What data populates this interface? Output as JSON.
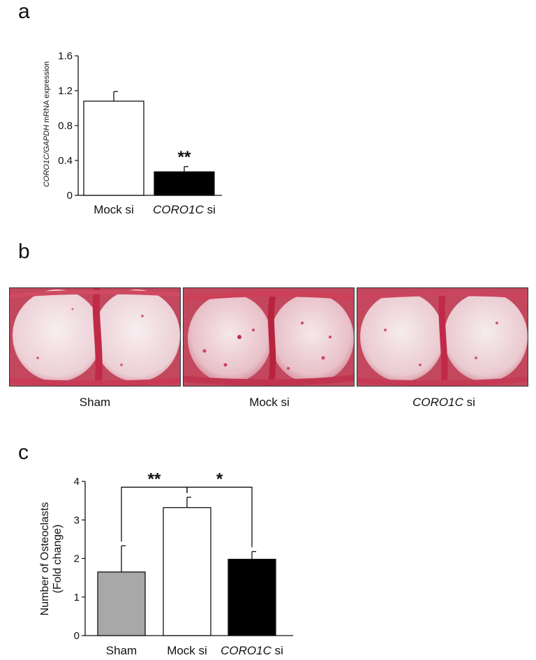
{
  "panels": {
    "a": "a",
    "b": "b",
    "c": "c"
  },
  "chart_data": [
    {
      "panel": "a",
      "type": "bar",
      "categories": [
        "Mock si",
        "CORO1C si"
      ],
      "category_parts": [
        {
          "italic": "",
          "plain": "Mock si"
        },
        {
          "italic": "CORO1C",
          "plain": " si"
        }
      ],
      "values": [
        1.08,
        0.27
      ],
      "errors": [
        0.11,
        0.06
      ],
      "bar_colors": [
        "#ffffff",
        "#000000"
      ],
      "ylabel_parts": {
        "italic": "CORO1C/GAPDH",
        "plain": " mRNA expression"
      },
      "ylim": [
        0,
        1.6
      ],
      "yticks": [
        "0",
        "0.4",
        "0.8",
        "1.2",
        "1.6"
      ],
      "annotations": [
        {
          "category": "CORO1C si",
          "text": "**"
        }
      ]
    },
    {
      "panel": "c",
      "type": "bar",
      "categories": [
        "Sham",
        "Mock si",
        "CORO1C si"
      ],
      "category_parts": [
        {
          "italic": "",
          "plain": "Sham"
        },
        {
          "italic": "",
          "plain": "Mock si"
        },
        {
          "italic": "CORO1C",
          "plain": " si"
        }
      ],
      "values": [
        1.65,
        3.32,
        1.98
      ],
      "errors": [
        0.68,
        0.27,
        0.2
      ],
      "bar_colors": [
        "#a8a8a8",
        "#ffffff",
        "#000000"
      ],
      "ylabel_lines": [
        "Number of  Osteoclasts",
        "(Fold change)"
      ],
      "ylim": [
        0,
        4
      ],
      "yticks": [
        "0",
        "1",
        "2",
        "3",
        "4"
      ],
      "annotations": [
        {
          "from": "Sham",
          "to": "Mock si",
          "text": "**"
        },
        {
          "from": "Mock si",
          "to": "CORO1C si",
          "text": "*"
        }
      ]
    }
  ],
  "photos": [
    {
      "parts": {
        "italic": "",
        "plain": "Sham"
      }
    },
    {
      "parts": {
        "italic": "",
        "plain": "Mock si"
      }
    },
    {
      "parts": {
        "italic": "CORO1C",
        "plain": " si"
      }
    }
  ]
}
